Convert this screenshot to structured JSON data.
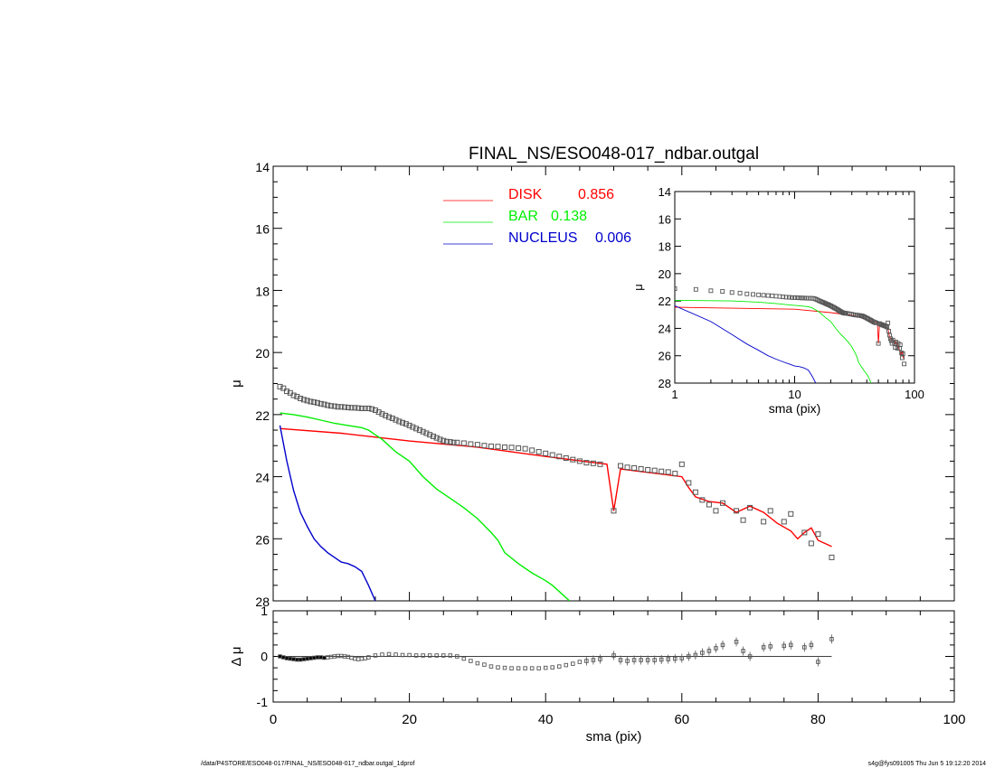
{
  "chart_data": [
    {
      "type": "scatter",
      "panel": "main",
      "title": "FINAL_NS/ESO048-017_ndbar.outgal",
      "ylabel": "μ",
      "xlim": [
        0,
        100
      ],
      "ylim": [
        28,
        14
      ],
      "xticks": [
        0,
        20,
        40,
        60,
        80,
        100
      ],
      "yticks": [
        14,
        16,
        18,
        20,
        22,
        24,
        26,
        28
      ],
      "legend_placement": "top-center",
      "series": [
        {
          "name": "data",
          "color": "#555555",
          "marker": "square",
          "x": [
            1,
            1.5,
            2,
            2.5,
            3,
            3.5,
            4,
            4.5,
            5,
            5.5,
            6,
            6.5,
            7,
            7.5,
            8,
            8.5,
            9,
            9.5,
            10,
            10.5,
            11,
            11.5,
            12,
            12.5,
            13,
            13.5,
            14,
            14.5,
            15,
            15.5,
            16,
            16.5,
            17,
            17.5,
            18,
            18.5,
            19,
            19.5,
            20,
            20.5,
            21,
            21.5,
            22,
            22.5,
            23,
            23.5,
            24,
            24.5,
            25,
            25.5,
            26,
            26.5,
            27,
            28,
            29,
            30,
            31,
            32,
            33,
            34,
            35,
            36,
            37,
            38,
            39,
            40,
            41,
            42,
            43,
            44,
            45,
            46,
            47,
            48,
            50,
            51,
            52,
            53,
            54,
            55,
            56,
            57,
            58,
            59,
            60,
            61,
            62,
            63,
            64,
            65,
            66,
            68,
            69,
            70,
            72,
            73,
            75,
            76,
            78,
            79,
            80,
            82
          ],
          "y": [
            21.1,
            21.15,
            21.25,
            21.3,
            21.38,
            21.42,
            21.48,
            21.52,
            21.55,
            21.58,
            21.6,
            21.62,
            21.65,
            21.67,
            21.7,
            21.72,
            21.73,
            21.75,
            21.75,
            21.76,
            21.77,
            21.78,
            21.78,
            21.79,
            21.8,
            21.8,
            21.8,
            21.82,
            21.86,
            21.92,
            21.98,
            22.03,
            22.08,
            22.12,
            22.17,
            22.22,
            22.26,
            22.3,
            22.35,
            22.4,
            22.45,
            22.5,
            22.55,
            22.6,
            22.65,
            22.7,
            22.75,
            22.8,
            22.84,
            22.87,
            22.88,
            22.9,
            22.9,
            22.92,
            22.95,
            22.97,
            23.0,
            23.02,
            23.03,
            23.05,
            23.06,
            23.08,
            23.1,
            23.15,
            23.2,
            23.25,
            23.3,
            23.35,
            23.4,
            23.45,
            23.5,
            23.55,
            23.57,
            23.6,
            25.1,
            23.65,
            23.7,
            23.72,
            23.75,
            23.78,
            23.8,
            23.83,
            23.85,
            23.9,
            23.6,
            24.2,
            24.5,
            24.75,
            24.9,
            25.1,
            24.85,
            25.1,
            25.4,
            25.0,
            25.45,
            25.1,
            25.45,
            25.2,
            25.8,
            26.15,
            25.85,
            26.6
          ]
        },
        {
          "name": "DISK",
          "color": "#ff0000",
          "x": [
            1,
            10,
            20,
            30,
            40,
            49,
            50,
            51,
            60,
            61,
            62,
            64,
            66,
            68,
            70,
            72,
            74,
            76,
            77,
            78,
            79,
            80,
            82
          ],
          "y": [
            22.45,
            22.6,
            22.85,
            23.05,
            23.35,
            23.6,
            25.1,
            23.75,
            24.0,
            24.35,
            24.65,
            24.8,
            24.85,
            25.15,
            24.95,
            25.15,
            25.5,
            25.75,
            26.0,
            25.8,
            25.65,
            26.05,
            26.25
          ]
        },
        {
          "name": "BAR",
          "color": "#00ee00",
          "x": [
            1,
            3,
            5,
            7,
            9,
            11,
            13,
            14,
            15,
            16,
            17,
            18,
            20,
            22,
            24,
            26,
            28,
            30,
            32,
            33,
            34,
            36,
            38,
            40,
            41,
            42,
            43.5
          ],
          "y": [
            21.95,
            22.0,
            22.08,
            22.18,
            22.28,
            22.35,
            22.42,
            22.5,
            22.65,
            22.8,
            23.0,
            23.2,
            23.5,
            24.0,
            24.4,
            24.7,
            25.0,
            25.35,
            25.8,
            26.05,
            26.45,
            26.8,
            27.1,
            27.35,
            27.5,
            27.7,
            28.0
          ]
        },
        {
          "name": "NUCLEUS",
          "color": "#0000cc",
          "x": [
            1,
            2,
            3,
            4,
            5,
            6,
            7,
            8,
            9,
            10,
            11,
            12,
            13,
            14,
            15
          ],
          "y": [
            22.35,
            23.5,
            24.45,
            25.15,
            25.6,
            26.0,
            26.25,
            26.45,
            26.6,
            26.75,
            26.8,
            26.9,
            27.05,
            27.5,
            28.0
          ]
        }
      ],
      "legend": [
        {
          "label": "DISK",
          "value": "0.856",
          "color": "#ff0000"
        },
        {
          "label": "BAR",
          "value": "0.138",
          "color": "#00ee00"
        },
        {
          "label": "NUCLEUS",
          "value": "0.006",
          "color": "#0000cc"
        }
      ]
    },
    {
      "type": "scatter",
      "panel": "inset",
      "xlabel": "sma (pix)",
      "ylabel": "μ",
      "xscale": "log",
      "xlim": [
        1,
        100
      ],
      "ylim": [
        28,
        14
      ],
      "xticks": [
        1,
        10,
        100
      ],
      "yticks": [
        14,
        16,
        18,
        20,
        22,
        24,
        26,
        28
      ]
    },
    {
      "type": "scatter",
      "panel": "residual",
      "xlabel": "sma (pix)",
      "ylabel": "Δ μ",
      "xlim": [
        0,
        100
      ],
      "ylim": [
        -1,
        1
      ],
      "xticks": [
        0,
        20,
        40,
        60,
        80,
        100
      ],
      "yticks": [
        1,
        0,
        -1
      ],
      "series": [
        {
          "name": "residual",
          "color": "#555555",
          "x": [
            1,
            1.5,
            2,
            2.5,
            3,
            3.5,
            4,
            4.5,
            5,
            5.5,
            6,
            6.5,
            7,
            7.5,
            8,
            8.5,
            9,
            9.5,
            10,
            10.5,
            11,
            11.5,
            12,
            12.5,
            13,
            13.5,
            14,
            15,
            16,
            17,
            18,
            19,
            20,
            21,
            22,
            23,
            24,
            25,
            26,
            27,
            28,
            29,
            30,
            31,
            32,
            33,
            34,
            35,
            36,
            37,
            38,
            39,
            40,
            41,
            42,
            43,
            44,
            45,
            46,
            47,
            48,
            50,
            51,
            52,
            53,
            54,
            55,
            56,
            57,
            58,
            59,
            60,
            61,
            62,
            63,
            64,
            65,
            66,
            68,
            69,
            70,
            72,
            73,
            75,
            76,
            78,
            79,
            80,
            82
          ],
          "y": [
            0.0,
            -0.02,
            -0.04,
            -0.05,
            -0.06,
            -0.07,
            -0.07,
            -0.06,
            -0.05,
            -0.04,
            -0.03,
            -0.02,
            -0.02,
            -0.03,
            -0.02,
            -0.01,
            0.0,
            0.01,
            0.01,
            0.0,
            -0.01,
            -0.03,
            -0.05,
            -0.06,
            -0.05,
            -0.04,
            -0.02,
            0.02,
            0.04,
            0.05,
            0.04,
            0.03,
            0.03,
            0.02,
            0.02,
            0.02,
            0.02,
            0.02,
            0.02,
            0.0,
            -0.05,
            -0.1,
            -0.15,
            -0.18,
            -0.22,
            -0.24,
            -0.25,
            -0.26,
            -0.26,
            -0.26,
            -0.26,
            -0.26,
            -0.25,
            -0.24,
            -0.22,
            -0.19,
            -0.16,
            -0.12,
            -0.1,
            -0.08,
            -0.06,
            0.02,
            -0.08,
            -0.1,
            -0.08,
            -0.08,
            -0.08,
            -0.08,
            -0.07,
            -0.06,
            -0.05,
            -0.04,
            0.0,
            0.03,
            0.08,
            0.12,
            0.18,
            0.25,
            0.32,
            0.12,
            0.0,
            0.2,
            0.22,
            0.23,
            0.25,
            0.2,
            0.25,
            -0.12,
            0.38
          ]
        }
      ]
    }
  ],
  "footer": {
    "left": "/data/P4STORE/ESO048-017/FINAL_NS/ESO048-017_ndbar.outgal_1dprof",
    "right": "s4g@fys091005  Thu Jun  5 19:12:20 2014"
  }
}
